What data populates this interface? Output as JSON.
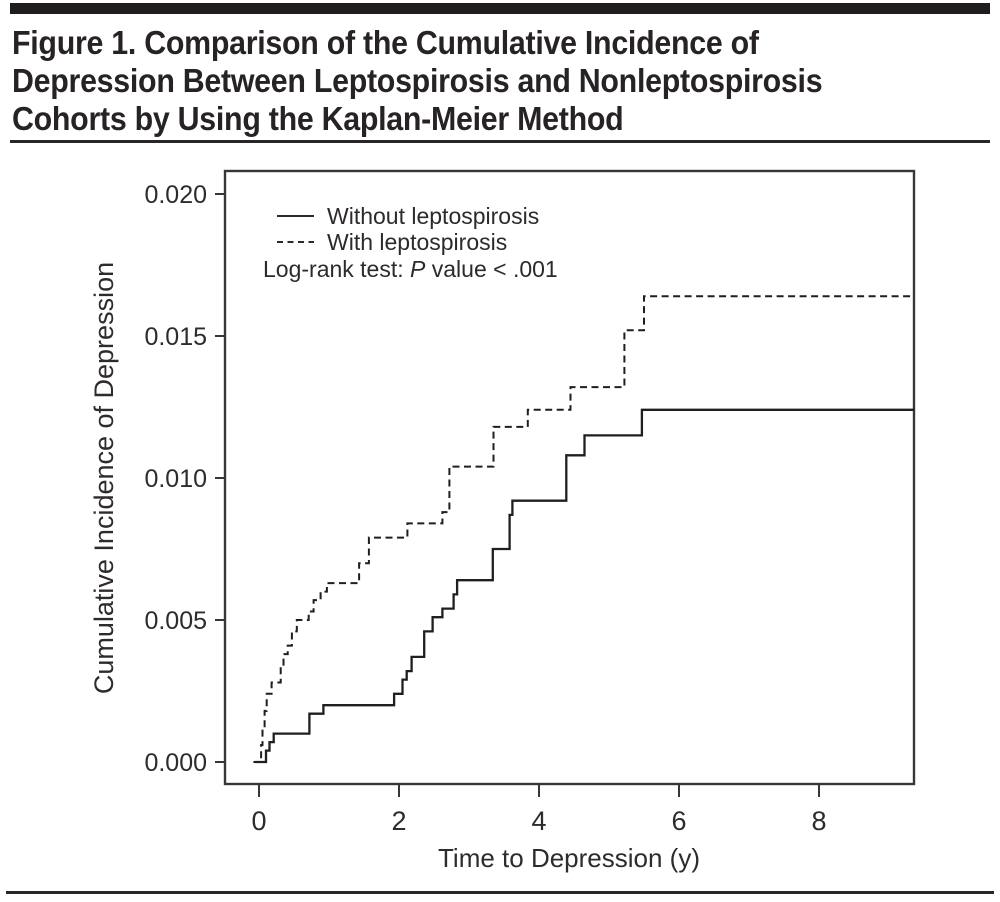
{
  "header": {
    "title_lines": [
      "Figure 1. Comparison of the Cumulative Incidence of",
      "Depression Between Leptospirosis and Nonleptospirosis",
      "Cohorts by Using the Kaplan-Meier Method"
    ]
  },
  "colors": {
    "ink": "#272324",
    "axis": "#3a3637",
    "curve": "#1f1f1f",
    "background": "#ffffff"
  },
  "chart_data": {
    "type": "line",
    "subtype": "kaplan-meier-step",
    "title": "",
    "xlabel": "Time to Depression (y)",
    "ylabel": "Cumulative Incidence of Depression",
    "xlim": [
      0,
      9.36
    ],
    "ylim": [
      0,
      0.02
    ],
    "grid": false,
    "x_ticks": {
      "values": [
        0,
        2,
        4,
        6,
        8
      ],
      "labels": [
        "0",
        "2",
        "4",
        "6",
        "8"
      ]
    },
    "y_ticks": {
      "values": [
        0,
        0.005,
        0.01,
        0.015,
        0.02
      ],
      "labels": [
        "0.000",
        "0.005",
        "0.010",
        "0.015",
        "0.020"
      ]
    },
    "legend": {
      "position": "top-left-inside",
      "entries": [
        {
          "label": "Without leptospirosis",
          "line_style": "solid"
        },
        {
          "label": "With leptospirosis",
          "line_style": "dashed"
        }
      ],
      "note": {
        "prefix": "Log-rank test: ",
        "stat_symbol": "P",
        "suffix": " value < .001"
      }
    },
    "series": [
      {
        "name": "Without leptospirosis",
        "style": "solid",
        "end_x": 9.36,
        "steps": [
          [
            -0.06,
            0.0
          ],
          [
            0.1,
            0.0004
          ],
          [
            0.15,
            0.0007
          ],
          [
            0.21,
            0.001
          ],
          [
            0.72,
            0.0017
          ],
          [
            0.92,
            0.002
          ],
          [
            1.93,
            0.0024
          ],
          [
            2.05,
            0.0029
          ],
          [
            2.11,
            0.0032
          ],
          [
            2.18,
            0.0037
          ],
          [
            2.36,
            0.0046
          ],
          [
            2.48,
            0.0051
          ],
          [
            2.62,
            0.0054
          ],
          [
            2.78,
            0.0059
          ],
          [
            2.83,
            0.0064
          ],
          [
            3.34,
            0.0075
          ],
          [
            3.58,
            0.0087
          ],
          [
            3.62,
            0.0092
          ],
          [
            4.39,
            0.0108
          ],
          [
            4.65,
            0.0115
          ],
          [
            5.47,
            0.0124
          ]
        ]
      },
      {
        "name": "With leptospirosis",
        "style": "dashed",
        "end_x": 9.36,
        "steps": [
          [
            -0.08,
            0.0
          ],
          [
            0.03,
            0.0006
          ],
          [
            0.05,
            0.0012
          ],
          [
            0.08,
            0.0018
          ],
          [
            0.11,
            0.0024
          ],
          [
            0.18,
            0.0028
          ],
          [
            0.31,
            0.0033
          ],
          [
            0.35,
            0.0038
          ],
          [
            0.41,
            0.0041
          ],
          [
            0.47,
            0.0046
          ],
          [
            0.54,
            0.005
          ],
          [
            0.71,
            0.0053
          ],
          [
            0.78,
            0.0057
          ],
          [
            0.88,
            0.006
          ],
          [
            0.97,
            0.0063
          ],
          [
            1.43,
            0.007
          ],
          [
            1.57,
            0.0079
          ],
          [
            2.12,
            0.0084
          ],
          [
            2.62,
            0.0088
          ],
          [
            2.72,
            0.0104
          ],
          [
            3.35,
            0.0118
          ],
          [
            3.84,
            0.0124
          ],
          [
            4.45,
            0.0132
          ],
          [
            5.22,
            0.0152
          ],
          [
            5.5,
            0.0164
          ]
        ]
      }
    ]
  }
}
